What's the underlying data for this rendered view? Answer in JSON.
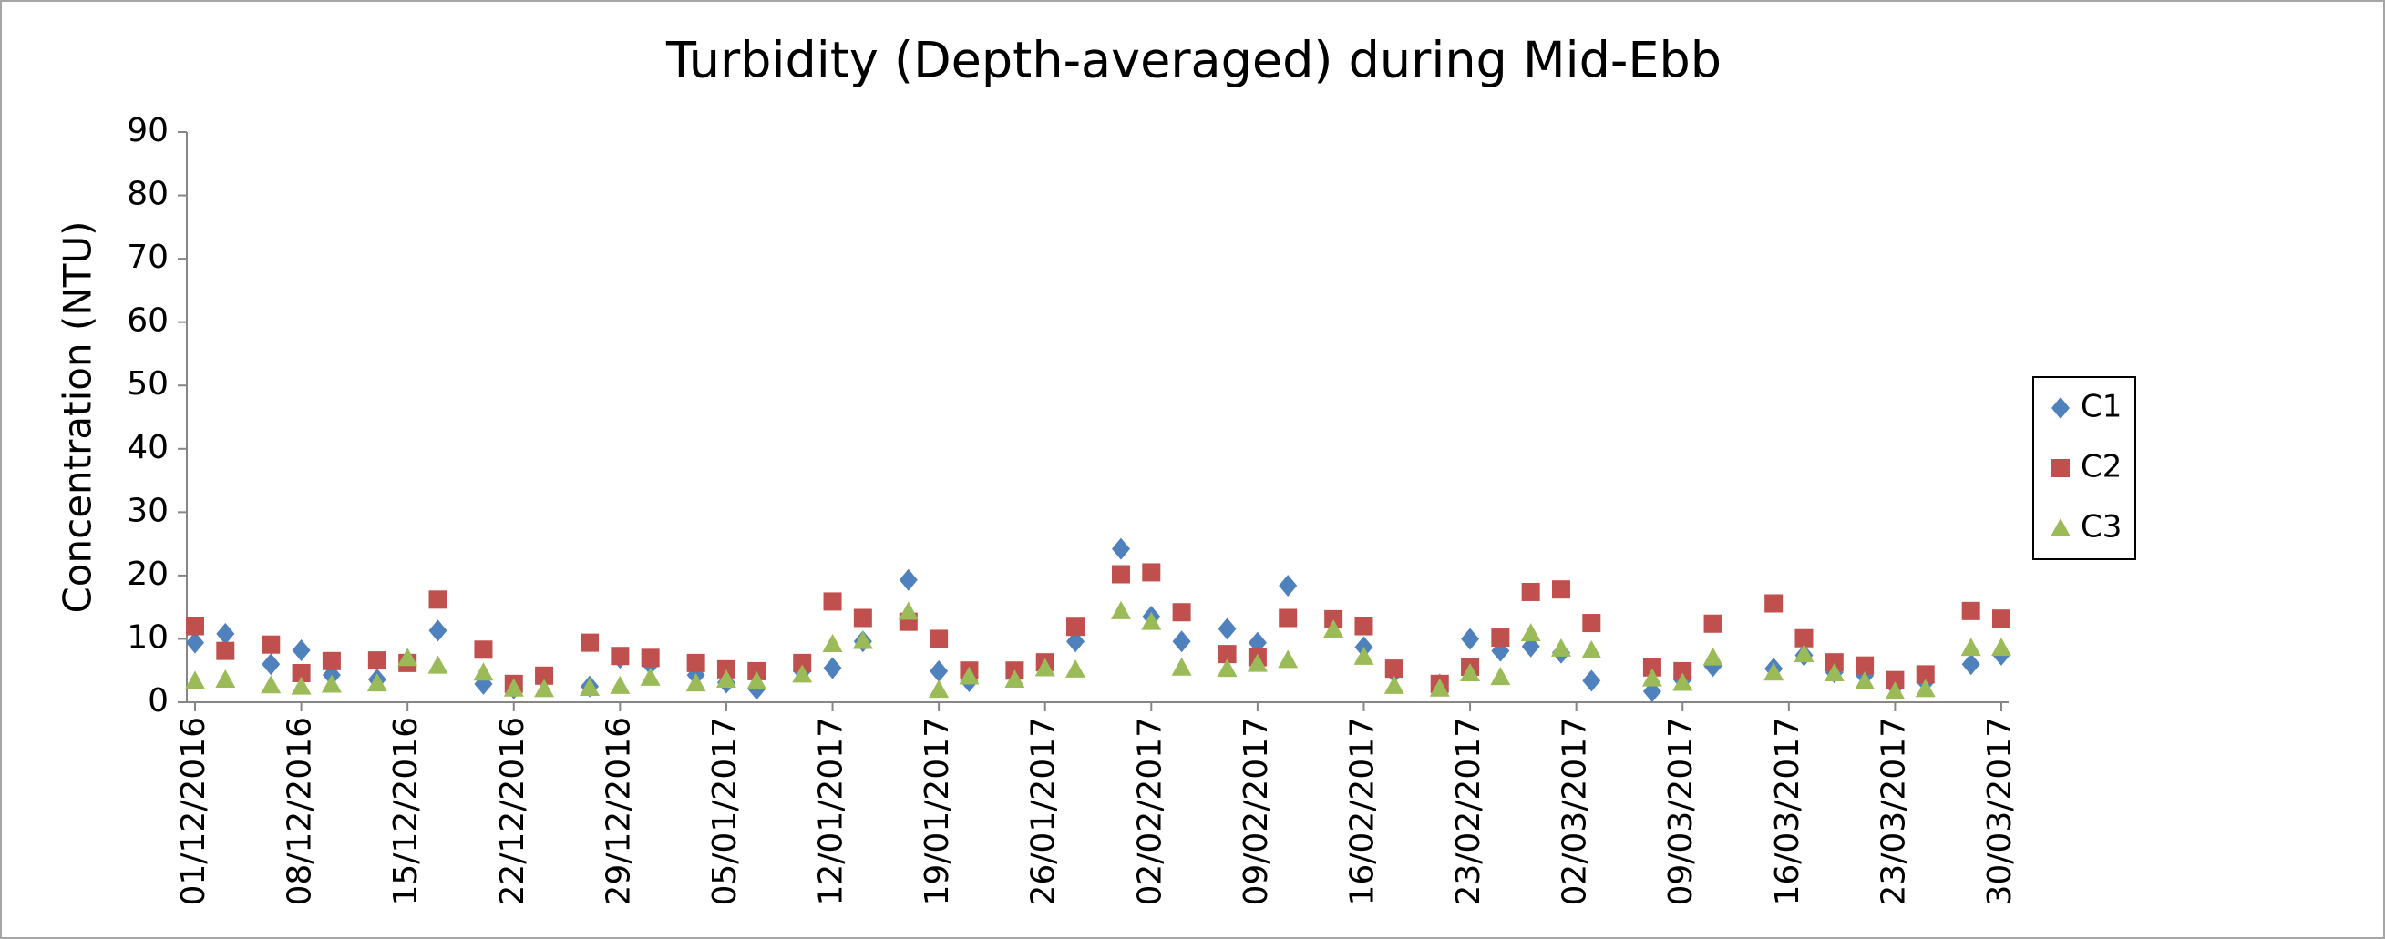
{
  "chart_data": {
    "type": "scatter",
    "title": "Turbidity (Depth-averaged) during Mid-Ebb",
    "ylabel": "Concentration (NTU)",
    "x": [
      "01/12/2016",
      "03/12/2016",
      "06/12/2016",
      "08/12/2016",
      "10/12/2016",
      "13/12/2016",
      "15/12/2016",
      "17/12/2016",
      "20/12/2016",
      "22/12/2016",
      "24/12/2016",
      "27/12/2016",
      "29/12/2016",
      "31/12/2016",
      "03/01/2017",
      "05/01/2017",
      "07/01/2017",
      "10/01/2017",
      "12/01/2017",
      "14/01/2017",
      "17/01/2017",
      "19/01/2017",
      "21/01/2017",
      "24/01/2017",
      "26/01/2017",
      "28/01/2017",
      "31/01/2017",
      "02/02/2017",
      "04/02/2017",
      "07/02/2017",
      "09/02/2017",
      "11/02/2017",
      "14/02/2017",
      "16/02/2017",
      "18/02/2017",
      "21/02/2017",
      "23/02/2017",
      "25/02/2017",
      "27/02/2017",
      "01/03/2017",
      "03/03/2017",
      "07/03/2017",
      "09/03/2017",
      "11/03/2017",
      "15/03/2017",
      "17/03/2017",
      "19/03/2017",
      "21/03/2017",
      "23/03/2017",
      "25/03/2017",
      "28/03/2017",
      "30/03/2017"
    ],
    "series": [
      {
        "name": "C1",
        "color": "#4f81bd",
        "marker": "diamond",
        "values": [
          9.4,
          10.8,
          6,
          8.2,
          4.3,
          3.6,
          6.5,
          11.3,
          2.9,
          2.2,
          3.8,
          2.5,
          7,
          6,
          4.3,
          3.1,
          2.1,
          4.9,
          5.4,
          9.6,
          19.3,
          4.9,
          3.3,
          4.2,
          6,
          9.6,
          24.2,
          13.5,
          9.6,
          11.6,
          9.4,
          18.4,
          12.8,
          8.7,
          4.7,
          2.8,
          10,
          8.1,
          8.8,
          7.8,
          3.4,
          1.7,
          3.5,
          5.7,
          5.3,
          7.4,
          4.7,
          4.2,
          2.5,
          3.2,
          6,
          7.5
        ]
      },
      {
        "name": "C2",
        "color": "#c0504d",
        "marker": "square",
        "values": [
          12,
          8.1,
          9.1,
          4.6,
          6.5,
          6.6,
          6.2,
          16.2,
          8.3,
          2.9,
          4.2,
          9.4,
          7.3,
          7,
          6.2,
          5.2,
          4.9,
          6.2,
          15.9,
          13.3,
          12.7,
          10,
          5,
          5,
          6.3,
          11.9,
          20.2,
          20.5,
          14.2,
          7.6,
          7.1,
          13.3,
          13.1,
          12,
          5.3,
          2.9,
          5.6,
          10.2,
          17.4,
          17.8,
          12.5,
          5.5,
          4.9,
          12.4,
          15.6,
          10.1,
          6.3,
          5.8,
          3.5,
          4.4,
          14.4,
          13.2
        ]
      },
      {
        "name": "C3",
        "color": "#9bbb59",
        "marker": "triangle",
        "values": [
          3.4,
          3.6,
          2.7,
          2.5,
          2.8,
          3,
          7,
          5.8,
          4.7,
          2.2,
          2.1,
          2.3,
          2.6,
          3.9,
          3,
          3.6,
          3.3,
          4.4,
          9.2,
          9.7,
          14.3,
          2,
          4.1,
          3.6,
          5.4,
          5.2,
          14.4,
          12.7,
          5.5,
          5.3,
          6.1,
          6.7,
          11.5,
          7.2,
          2.6,
          2.2,
          4.6,
          4,
          10.9,
          8.5,
          8.2,
          3.8,
          3.1,
          7.1,
          4.7,
          7.6,
          4.6,
          3.3,
          1.7,
          2.1,
          8.6,
          8.6
        ]
      }
    ],
    "xlim": [
      "01/12/2016",
      "30/03/2017"
    ],
    "xticks": [
      "01/12/2016",
      "08/12/2016",
      "15/12/2016",
      "22/12/2016",
      "29/12/2016",
      "05/01/2017",
      "12/01/2017",
      "19/01/2017",
      "26/01/2017",
      "02/02/2017",
      "09/02/2017",
      "16/02/2017",
      "23/02/2017",
      "02/03/2017",
      "09/03/2017",
      "16/03/2017",
      "23/03/2017",
      "30/03/2017"
    ],
    "ylim": [
      0,
      90
    ],
    "yticks": [
      0,
      10,
      20,
      30,
      40,
      50,
      60,
      70,
      80,
      90
    ],
    "legend": "right"
  }
}
